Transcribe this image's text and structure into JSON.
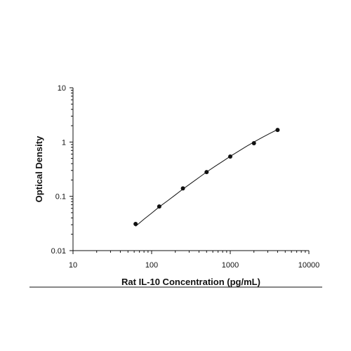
{
  "chart_data": {
    "type": "scatter",
    "title": "",
    "xlabel": "Rat IL-10 Concentration (pg/mL)",
    "ylabel": "Optical Density",
    "x_scale": "log",
    "y_scale": "log",
    "xlim": [
      10,
      10000
    ],
    "ylim": [
      0.01,
      10
    ],
    "x_ticks": [
      "10",
      "100",
      "1000",
      "10000"
    ],
    "y_ticks": [
      "0.01",
      "0.1",
      "1",
      "10"
    ],
    "grid": false,
    "legend": "none",
    "series": [
      {
        "x": [
          62.5,
          125,
          250,
          500,
          1000,
          2000,
          4000
        ],
        "y": [
          0.031,
          0.065,
          0.14,
          0.28,
          0.54,
          0.95,
          1.67
        ]
      }
    ],
    "fit_curve": {
      "x": [
        62.5,
        80,
        100,
        125,
        160,
        200,
        250,
        320,
        400,
        500,
        640,
        800,
        1000,
        1280,
        1600,
        2000,
        2560,
        3200,
        4000
      ],
      "y": [
        0.028,
        0.038,
        0.049,
        0.064,
        0.083,
        0.106,
        0.136,
        0.176,
        0.222,
        0.281,
        0.357,
        0.44,
        0.545,
        0.68,
        0.83,
        1.0,
        1.22,
        1.45,
        1.7
      ]
    },
    "colors": {
      "axis": "#111111",
      "marker": "#111111",
      "curve": "#111111"
    }
  }
}
